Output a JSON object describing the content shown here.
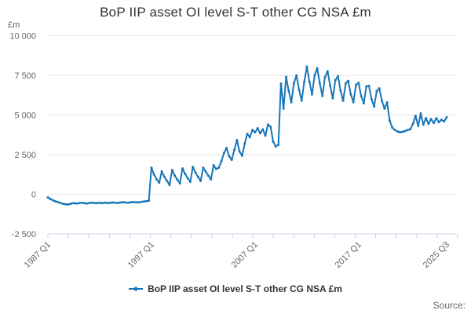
{
  "chart": {
    "title": "BoP IIP asset OI level S-T other CG NSA £m",
    "y_axis_unit": "£m",
    "legend_label": "BoP IIP asset OI level S-T other CG NSA £m",
    "source_label": "Source:",
    "colors": {
      "line": "#1776b9",
      "grid": "#e6e6e6",
      "axis": "#ccd6eb",
      "tick_label": "#666666",
      "text": "#333333"
    }
  },
  "chart_data": {
    "type": "line",
    "title": "BoP IIP asset OI level S-T other CG NSA £m",
    "ylabel": "£m",
    "legend": [
      "BoP IIP asset OI level S-T other CG NSA £m"
    ],
    "legend_position": "bottom",
    "grid": true,
    "frequency": "quarterly",
    "x_start": "1987 Q1",
    "x_end": "2025 Q3",
    "ylim": [
      -2500,
      10000
    ],
    "y_ticks": [
      {
        "v": 10000,
        "label": "10 000"
      },
      {
        "v": 7500,
        "label": "7 500"
      },
      {
        "v": 5000,
        "label": "5 000"
      },
      {
        "v": 2500,
        "label": "2 500"
      },
      {
        "v": 0,
        "label": "0"
      },
      {
        "v": -2500,
        "label": "-2 500"
      }
    ],
    "x_ticks": [
      {
        "q": 0,
        "label": "1987 Q1"
      },
      {
        "q": 40,
        "label": "1997 Q1"
      },
      {
        "q": 80,
        "label": "2007 Q1"
      },
      {
        "q": 120,
        "label": "2017 Q1"
      },
      {
        "q": 154,
        "label": "2025 Q3"
      }
    ],
    "minor_tick_count": 21,
    "values": [
      -200,
      -300,
      -380,
      -450,
      -500,
      -560,
      -610,
      -640,
      -640,
      -590,
      -560,
      -580,
      -560,
      -540,
      -560,
      -580,
      -550,
      -530,
      -550,
      -560,
      -540,
      -560,
      -530,
      -550,
      -540,
      -520,
      -530,
      -550,
      -520,
      -500,
      -520,
      -530,
      -510,
      -490,
      -500,
      -510,
      -480,
      -450,
      -430,
      -400,
      1680,
      1250,
      950,
      740,
      1440,
      1100,
      850,
      590,
      1530,
      1180,
      920,
      690,
      1630,
      1280,
      1020,
      790,
      1730,
      1380,
      1100,
      840,
      1680,
      1420,
      1170,
      940,
      1830,
      1600,
      1680,
      2080,
      2600,
      2920,
      2400,
      2180,
      2800,
      3420,
      2700,
      2430,
      3200,
      3810,
      3600,
      4060,
      3910,
      4160,
      3850,
      4100,
      3710,
      4400,
      4260,
      3320,
      3020,
      3120,
      6980,
      5400,
      7400,
      6500,
      5800,
      7000,
      7500,
      6600,
      5900,
      7100,
      8050,
      7100,
      6300,
      7500,
      7950,
      7000,
      6200,
      7400,
      7750,
      6850,
      6050,
      7200,
      7450,
      6550,
      5900,
      7000,
      7150,
      6300,
      5800,
      6900,
      7030,
      6200,
      5740,
      6800,
      6830,
      6000,
      5540,
      6500,
      6680,
      5900,
      5400,
      5790,
      4650,
      4210,
      4060,
      3960,
      3910,
      3940,
      3990,
      4060,
      4110,
      4455,
      4950,
      4310,
      5100,
      4400,
      4800,
      4450,
      4750,
      4500,
      4800,
      4550,
      4700,
      4600,
      4850
    ]
  }
}
